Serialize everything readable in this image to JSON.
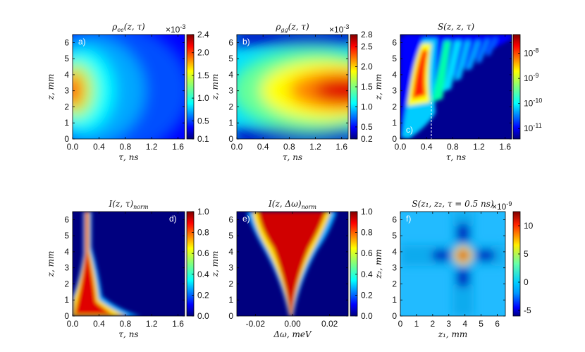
{
  "chart_data": [
    {
      "id": "a",
      "type": "heatmap",
      "panel_label": "a)",
      "title": "ρ_ee(z, τ)",
      "xlabel": "τ, ns",
      "ylabel": "z, mm",
      "xlim": [
        0.0,
        1.7
      ],
      "ylim": [
        0,
        6.5
      ],
      "xticks": [
        "0.0",
        "0.4",
        "0.8",
        "1.2",
        "1.6"
      ],
      "yticks": [
        "0",
        "1",
        "2",
        "3",
        "4",
        "5",
        "6"
      ],
      "colorbar": {
        "min": 0.1,
        "max": 2.4,
        "ticks": [
          "0.1",
          "0.5",
          "1.0",
          "1.5",
          "2.0",
          "2.4"
        ],
        "multiplier": "×10^-3"
      }
    },
    {
      "id": "b",
      "type": "heatmap",
      "panel_label": "b)",
      "title": "ρ_gg(z, τ)",
      "xlabel": "τ, ns",
      "ylabel": "z, mm",
      "xlim": [
        0.0,
        1.7
      ],
      "ylim": [
        0,
        6.5
      ],
      "xticks": [
        "0.0",
        "0.4",
        "0.8",
        "1.2",
        "1.6"
      ],
      "yticks": [
        "0",
        "1",
        "2",
        "3",
        "4",
        "5",
        "6"
      ],
      "colorbar": {
        "min": 0.2,
        "max": 2.8,
        "ticks": [
          "0.2",
          "0.5",
          "1.0",
          "1.5",
          "2.0",
          "2.5",
          "2.8"
        ],
        "multiplier": "×10^-3"
      }
    },
    {
      "id": "c",
      "type": "heatmap",
      "panel_label": "c)",
      "title": "S(z, z, τ)",
      "xlabel": "τ, ns",
      "ylabel": "z, mm",
      "xlim": [
        0.0,
        1.7
      ],
      "ylim": [
        0,
        6.5
      ],
      "xticks": [
        "0.0",
        "0.4",
        "0.8",
        "1.2",
        "1.6"
      ],
      "yticks": [
        "0",
        "1",
        "2",
        "3",
        "4",
        "5",
        "6"
      ],
      "colorbar": {
        "scale": "log",
        "ticks": [
          "10^-8",
          "10^-9",
          "10^-10",
          "10^-11"
        ]
      },
      "annotation": {
        "dashed_line_tau": 0.5,
        "from_z": 0,
        "to_z": 2.3
      }
    },
    {
      "id": "d",
      "type": "heatmap",
      "panel_label": "d)",
      "title": "I(z, τ)_norm",
      "xlabel": "τ, ns",
      "ylabel": "z, mm",
      "xlim": [
        0.0,
        1.7
      ],
      "ylim": [
        0,
        6.5
      ],
      "xticks": [
        "0.0",
        "0.4",
        "0.8",
        "1.2",
        "1.6"
      ],
      "yticks": [
        "0",
        "1",
        "2",
        "3",
        "4",
        "5",
        "6"
      ],
      "colorbar": {
        "min": 0.0,
        "max": 1.0,
        "ticks": [
          "0.0",
          "0.2",
          "0.4",
          "0.6",
          "0.8",
          "1.0"
        ]
      }
    },
    {
      "id": "e",
      "type": "heatmap",
      "panel_label": "e)",
      "title": "I(z, Δω)_norm",
      "xlabel": "Δω, meV",
      "ylabel": "z, mm",
      "xlim": [
        -0.03,
        0.03
      ],
      "ylim": [
        0,
        6.5
      ],
      "xticks": [
        "-0.02",
        "0.00",
        "0.02"
      ],
      "yticks": [
        "0",
        "1",
        "2",
        "3",
        "4",
        "5",
        "6"
      ],
      "colorbar": {
        "min": 0.0,
        "max": 1.0,
        "ticks": [
          "0.0",
          "0.2",
          "0.4",
          "0.6",
          "0.8",
          "1.0"
        ]
      }
    },
    {
      "id": "f",
      "type": "heatmap",
      "panel_label": "f)",
      "title": "S(z₁, z₂, τ = 0.5 ns)",
      "xlabel": "z₁, mm",
      "ylabel": "z₂, mm",
      "xlim": [
        0,
        6.5
      ],
      "ylim": [
        0,
        6.5
      ],
      "xticks": [
        "0",
        "1",
        "2",
        "3",
        "4",
        "5",
        "6"
      ],
      "yticks": [
        "0",
        "1",
        "2",
        "3",
        "4",
        "5",
        "6"
      ],
      "colorbar": {
        "min": -6,
        "max": 12.5,
        "ticks": [
          "10",
          "5",
          "0",
          "-5"
        ],
        "multiplier": "×10^-9"
      }
    }
  ]
}
